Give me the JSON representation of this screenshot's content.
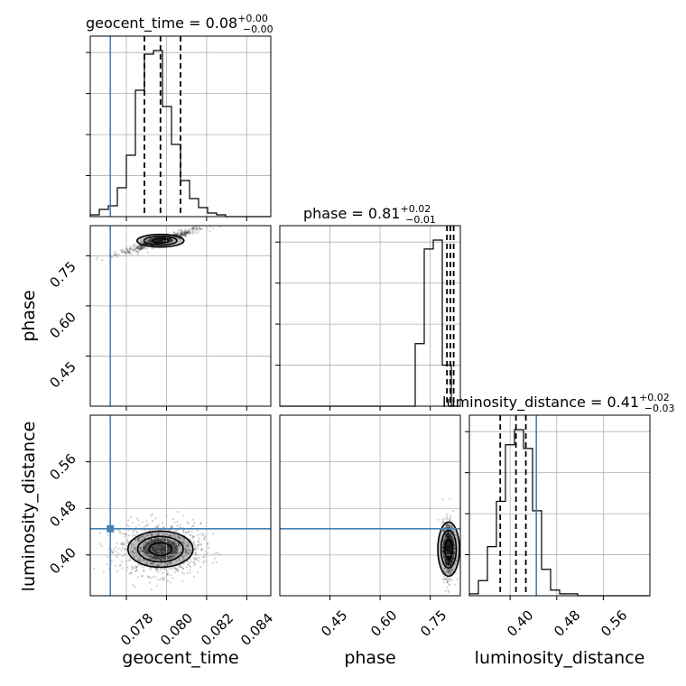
{
  "chart_data": {
    "type": "corner",
    "parameters": [
      "geocent_time",
      "phase",
      "luminosity_distance"
    ],
    "truth": {
      "geocent_time": 0.0772,
      "phase": null,
      "luminosity_distance": 0.445
    },
    "titles": [
      {
        "param": "geocent_time",
        "text": "geocent_time = 0.08",
        "plus": "+0.00",
        "minus": "−0.00"
      },
      {
        "param": "phase",
        "text": "phase = 0.81",
        "plus": "+0.02",
        "minus": "−0.01"
      },
      {
        "param": "luminosity_distance",
        "text": "luminosity_distance = 0.41",
        "plus": "+0.02",
        "minus": "−0.03"
      }
    ],
    "axis_labels": {
      "geocent_time": "geocent_time",
      "phase": "phase",
      "luminosity_distance": "luminosity_distance"
    },
    "ranges": {
      "geocent_time": [
        0.0762,
        0.0852
      ],
      "phase": [
        0.3,
        0.84
      ],
      "luminosity_distance": [
        0.33,
        0.64
      ]
    },
    "ticks": {
      "geocent_time": [
        "0.078",
        "0.080",
        "0.082",
        "0.084"
      ],
      "phase": [
        "0.45",
        "0.60",
        "0.75"
      ],
      "luminosity_distance": [
        "0.40",
        "0.48",
        "0.56"
      ]
    },
    "tick_values": {
      "geocent_time": [
        0.078,
        0.08,
        0.082,
        0.084
      ],
      "phase": [
        0.45,
        0.6,
        0.75
      ],
      "luminosity_distance": [
        0.4,
        0.48,
        0.56
      ]
    },
    "quantiles": {
      "geocent_time": [
        0.0789,
        0.0797,
        0.0807
      ],
      "phase": [
        0.8,
        0.81,
        0.82
      ],
      "luminosity_distance": [
        0.383,
        0.41,
        0.427
      ]
    },
    "histograms": {
      "geocent_time": {
        "edges_start": 0.0762,
        "bin_width": 0.00045,
        "counts": [
          0.01,
          0.04,
          0.06,
          0.16,
          0.34,
          0.7,
          0.9,
          0.92,
          0.61,
          0.4,
          0.2,
          0.1,
          0.05,
          0.02,
          0.01,
          0.0,
          0.0,
          0.0,
          0.0,
          0.0
        ]
      },
      "phase": {
        "edges_start": 0.3,
        "bin_width": 0.027,
        "counts": [
          0,
          0,
          0,
          0,
          0,
          0,
          0,
          0,
          0,
          0,
          0,
          0,
          0,
          0,
          0,
          0.35,
          0.88,
          0.93,
          0.23,
          0
        ]
      },
      "luminosity_distance": {
        "edges_start": 0.33,
        "bin_width": 0.0155,
        "counts": [
          0.01,
          0.08,
          0.26,
          0.5,
          0.8,
          0.88,
          0.78,
          0.45,
          0.14,
          0.03,
          0.01,
          0.01,
          0,
          0,
          0,
          0,
          0,
          0,
          0,
          0
        ]
      }
    },
    "peaks": {
      "geocent_time_phase": {
        "x": 0.0797,
        "y": 0.795
      },
      "geocent_time_luminosity_distance": {
        "x": 0.0797,
        "y": 0.41
      },
      "phase_luminosity_distance": {
        "x": 0.805,
        "y": 0.41
      }
    },
    "grid": true
  }
}
